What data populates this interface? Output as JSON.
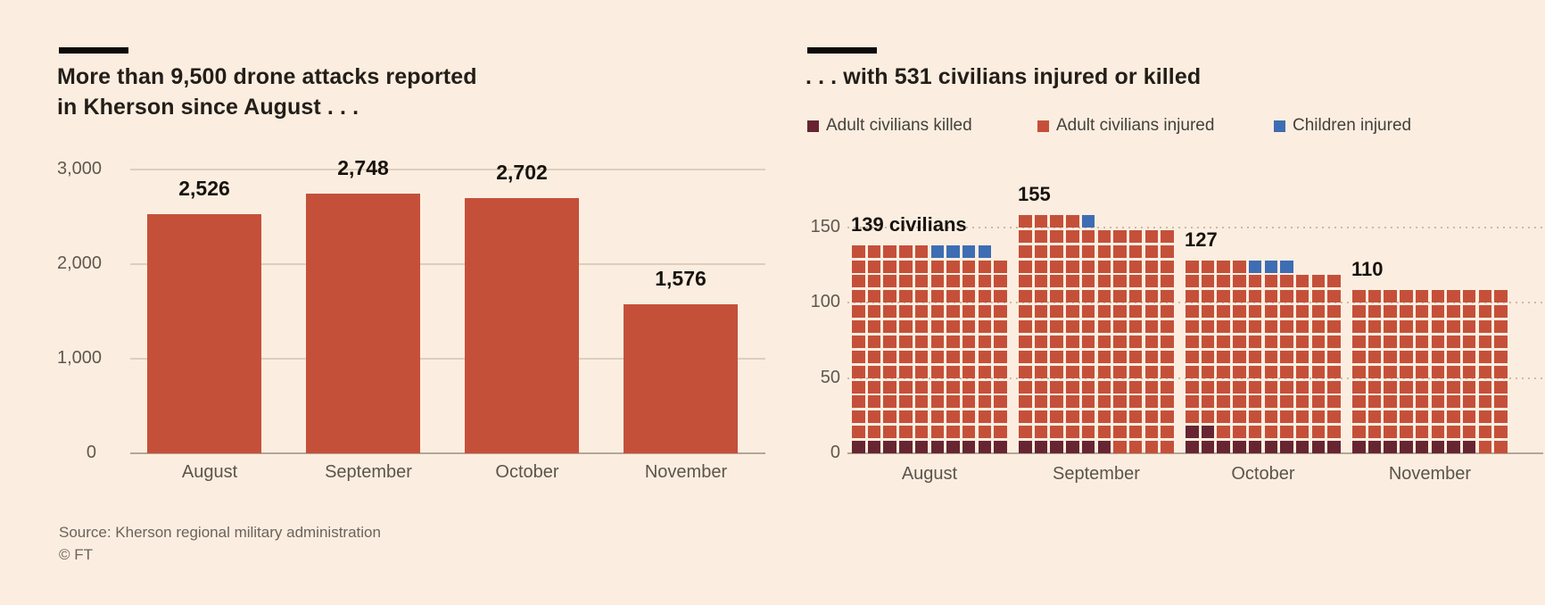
{
  "page": {
    "background_color": "#fbeee0",
    "source_line": "Source: Kherson regional military administration",
    "copyright_line": "© FT"
  },
  "chart_data": [
    {
      "type": "bar",
      "title": "More than 9,500 drone attacks reported in Kherson since August . . .",
      "title_lines": [
        "More than 9,500 drone attacks reported",
        "in Kherson since August . . ."
      ],
      "categories": [
        "August",
        "September",
        "October",
        "November"
      ],
      "values": [
        2526,
        2748,
        2702,
        1576
      ],
      "value_labels": [
        "2,526",
        "2,748",
        "2,702",
        "1,576"
      ],
      "ylim": [
        0,
        3000
      ],
      "yticks": [
        0,
        1000,
        2000,
        3000
      ],
      "ytick_labels": [
        "0",
        "1,000",
        "2,000",
        "3,000"
      ],
      "xlabel": "",
      "ylabel": "",
      "bar_color": "#c5503a",
      "grid": "horizontal-solid",
      "legend_position": "none"
    },
    {
      "type": "waffle",
      "title": ". . . with 531 civilians injured or killed",
      "square_unit": "1 civilian per square, 10 squares per row",
      "categories": [
        "August",
        "September",
        "October",
        "November"
      ],
      "totals": [
        139,
        155,
        127,
        110
      ],
      "total_labels": [
        "139 civilians",
        "155",
        "127",
        "110"
      ],
      "series": [
        {
          "name": "Adult civilians killed",
          "color": "#672531",
          "values": [
            10,
            6,
            12,
            8
          ]
        },
        {
          "name": "Adult civilians injured",
          "color": "#c5503a",
          "values": [
            125,
            148,
            112,
            102
          ]
        },
        {
          "name": "Children injured",
          "color": "#3e6db3",
          "values": [
            4,
            1,
            3,
            0
          ]
        }
      ],
      "ylim": [
        0,
        150
      ],
      "yticks": [
        0,
        50,
        100,
        150
      ],
      "ytick_labels": [
        "0",
        "50",
        "100",
        "150"
      ],
      "grid": "horizontal-dotted",
      "legend_position": "top"
    }
  ]
}
